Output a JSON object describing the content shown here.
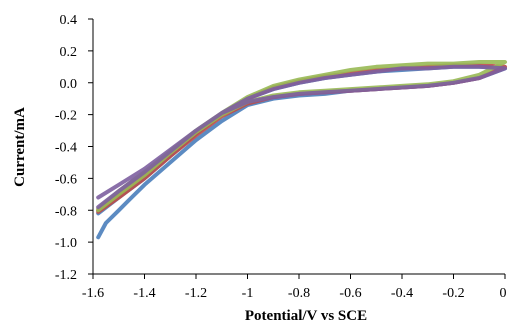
{
  "chart_data": {
    "type": "line",
    "title": "",
    "xlabel": "Potential/V vs SCE",
    "ylabel": "Current/mA",
    "xlim": [
      -1.6,
      0
    ],
    "ylim": [
      -1.2,
      0.4
    ],
    "x_ticks": [
      "-1.6",
      "-1.4",
      "-1.2",
      "-1",
      "-0.8",
      "-0.6",
      "-0.4",
      "-0.2",
      "0"
    ],
    "y_ticks": [
      "0.4",
      "0.2",
      "0.0",
      "-0.2",
      "-0.4",
      "-0.6",
      "-0.8",
      "-1.0",
      "-1.2"
    ],
    "grid": false,
    "legend": "none",
    "series": [
      {
        "color": "#4a7ebb",
        "x": [
          -1.58,
          -1.55,
          -1.5,
          -1.45,
          -1.4,
          -1.3,
          -1.2,
          -1.1,
          -1.0,
          -0.9,
          -0.8,
          -0.7,
          -0.6,
          -0.5,
          -0.4,
          -0.3,
          -0.2,
          -0.1,
          0.0,
          -0.1,
          -0.2,
          -0.3,
          -0.4,
          -0.5,
          -0.6,
          -0.7,
          -0.8,
          -0.9,
          -1.0,
          -1.1,
          -1.2,
          -1.3,
          -1.4,
          -1.5,
          -1.58
        ],
        "y": [
          -0.97,
          -0.88,
          -0.8,
          -0.72,
          -0.64,
          -0.5,
          -0.36,
          -0.24,
          -0.14,
          -0.1,
          -0.08,
          -0.07,
          -0.05,
          -0.04,
          -0.03,
          -0.02,
          0.0,
          0.03,
          0.09,
          0.1,
          0.1,
          0.09,
          0.08,
          0.07,
          0.05,
          0.03,
          0.0,
          -0.04,
          -0.1,
          -0.2,
          -0.32,
          -0.46,
          -0.6,
          -0.72,
          -0.82
        ]
      },
      {
        "color": "#be4b48",
        "x": [
          -1.58,
          -1.5,
          -1.4,
          -1.3,
          -1.2,
          -1.1,
          -1.0,
          -0.9,
          -0.8,
          -0.7,
          -0.6,
          -0.5,
          -0.4,
          -0.3,
          -0.2,
          -0.1,
          0.0,
          -0.1,
          -0.2,
          -0.3,
          -0.4,
          -0.5,
          -0.6,
          -0.7,
          -0.8,
          -0.9,
          -1.0,
          -1.1,
          -1.2,
          -1.3,
          -1.4,
          -1.5,
          -1.58
        ],
        "y": [
          -0.81,
          -0.72,
          -0.6,
          -0.46,
          -0.33,
          -0.21,
          -0.13,
          -0.09,
          -0.07,
          -0.06,
          -0.05,
          -0.04,
          -0.03,
          -0.02,
          0.0,
          0.03,
          0.1,
          0.11,
          0.11,
          0.1,
          0.09,
          0.08,
          0.06,
          0.04,
          0.01,
          -0.03,
          -0.1,
          -0.2,
          -0.31,
          -0.44,
          -0.57,
          -0.7,
          -0.8
        ]
      },
      {
        "color": "#98b954",
        "x": [
          -1.58,
          -1.5,
          -1.4,
          -1.3,
          -1.2,
          -1.1,
          -1.0,
          -0.9,
          -0.8,
          -0.7,
          -0.6,
          -0.5,
          -0.4,
          -0.3,
          -0.2,
          -0.1,
          0.0,
          -0.1,
          -0.2,
          -0.3,
          -0.4,
          -0.5,
          -0.6,
          -0.7,
          -0.8,
          -0.9,
          -1.0,
          -1.1,
          -1.2,
          -1.3,
          -1.4,
          -1.5,
          -1.58
        ],
        "y": [
          -0.8,
          -0.7,
          -0.58,
          -0.44,
          -0.31,
          -0.2,
          -0.12,
          -0.08,
          -0.06,
          -0.05,
          -0.04,
          -0.03,
          -0.02,
          -0.01,
          0.01,
          0.05,
          0.13,
          0.13,
          0.12,
          0.12,
          0.11,
          0.1,
          0.08,
          0.05,
          0.02,
          -0.02,
          -0.09,
          -0.19,
          -0.3,
          -0.43,
          -0.56,
          -0.68,
          -0.79
        ]
      },
      {
        "color": "#7d5fa0",
        "x": [
          -1.58,
          -1.5,
          -1.4,
          -1.3,
          -1.2,
          -1.1,
          -1.0,
          -0.9,
          -0.8,
          -0.7,
          -0.6,
          -0.5,
          -0.4,
          -0.3,
          -0.2,
          -0.1,
          0.0,
          -0.1,
          -0.2,
          -0.3,
          -0.4,
          -0.5,
          -0.6,
          -0.7,
          -0.8,
          -0.9,
          -1.0,
          -1.1,
          -1.2,
          -1.3,
          -1.4,
          -1.5,
          -1.58
        ],
        "y": [
          -0.78,
          -0.68,
          -0.56,
          -0.43,
          -0.3,
          -0.19,
          -0.12,
          -0.09,
          -0.07,
          -0.06,
          -0.05,
          -0.04,
          -0.03,
          -0.02,
          0.0,
          0.03,
          0.09,
          0.1,
          0.1,
          0.09,
          0.09,
          0.07,
          0.05,
          0.03,
          0.0,
          -0.04,
          -0.1,
          -0.19,
          -0.3,
          -0.42,
          -0.54,
          -0.64,
          -0.72
        ]
      }
    ]
  }
}
